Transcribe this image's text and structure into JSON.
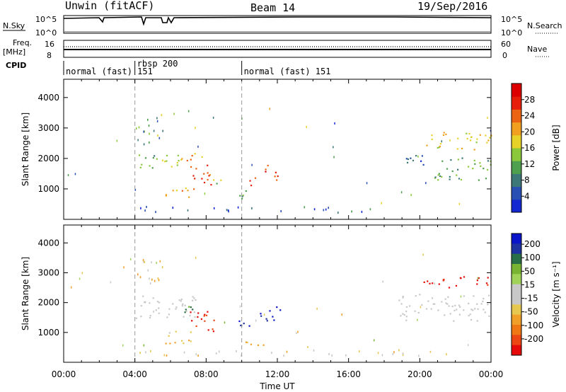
{
  "header": {
    "station": "Unwin (fitACF)",
    "beam": "Beam 14",
    "date": "19/Sep/2016"
  },
  "top_panels": {
    "nsky_label": "N.Sky",
    "nsky_ticks": [
      "10^5",
      "10^0"
    ],
    "nsearch_label": "N.Search",
    "nsearch_ticks": [
      "10^5",
      "10^0"
    ],
    "freq_label": "Freq.",
    "freq_unit": "[MHz]",
    "freq_ticks": [
      "16",
      "8"
    ],
    "nave_label": "Nave",
    "nave_ticks": [
      "60",
      "0"
    ],
    "cpid_label": "CPID"
  },
  "cpid_segments": [
    {
      "label": "normal (fast) 151",
      "start_h": 0
    },
    {
      "label": "rbsp 200",
      "start_h": 4
    },
    {
      "label": "normal (fast) 151",
      "start_h": 10
    }
  ],
  "colors": {
    "power": [
      "#1428d2",
      "#2850b4",
      "#3c7878",
      "#4ea04e",
      "#8cc83c",
      "#e6d228",
      "#f0a01e",
      "#eb6414",
      "#e61e0a",
      "#dc0000"
    ],
    "velocity": [
      "#0a14c8",
      "#1e32a0",
      "#286e46",
      "#78b432",
      "#a0d25a",
      "#c8c8c8",
      "#c8c8c8",
      "#e6c850",
      "#f0a028",
      "#f07814",
      "#eb4614",
      "#e60a0a"
    ]
  },
  "chart_data": [
    {
      "type": "heatmap",
      "name": "power",
      "xlabel": "Time UT",
      "ylabel": "Slant Range [km]",
      "xlim": [
        0,
        24
      ],
      "ylim": [
        0,
        4600
      ],
      "yticks": [
        1000,
        2000,
        3000,
        4000
      ],
      "xticks": [
        "00:00",
        "04:00",
        "08:00",
        "12:00",
        "16:00",
        "20:00",
        "00:00"
      ],
      "colorbar": {
        "label": "Power [dB]",
        "ticks": [
          4,
          8,
          12,
          16,
          20,
          24,
          28
        ],
        "range": [
          0,
          32
        ]
      },
      "regions": [
        {
          "t0": 4.0,
          "t1": 5.2,
          "r0": 1600,
          "r1": 2200,
          "value": 12
        },
        {
          "t0": 5.2,
          "t1": 6.6,
          "r0": 1700,
          "r1": 2300,
          "value": 16
        },
        {
          "t0": 6.6,
          "t1": 7.8,
          "r0": 1900,
          "r1": 2300,
          "value": 22
        },
        {
          "t0": 7.0,
          "t1": 8.3,
          "r0": 1000,
          "r1": 1800,
          "value": 26
        },
        {
          "t0": 5.7,
          "t1": 7.6,
          "r0": 700,
          "r1": 1100,
          "value": 20
        },
        {
          "t0": 8.3,
          "t1": 9.0,
          "r0": 1100,
          "r1": 1500,
          "value": 14
        },
        {
          "t0": 9.8,
          "t1": 10.3,
          "r0": 700,
          "r1": 1500,
          "value": 10
        },
        {
          "t0": 10.3,
          "t1": 10.9,
          "r0": 1100,
          "r1": 1500,
          "value": 24
        },
        {
          "t0": 11.0,
          "t1": 12.2,
          "r0": 1300,
          "r1": 1800,
          "value": 26
        },
        {
          "t0": 18.7,
          "t1": 20.2,
          "r0": 1800,
          "r1": 2300,
          "value": 6
        },
        {
          "t0": 20.2,
          "t1": 24.0,
          "r0": 2300,
          "r1": 2900,
          "value": 18
        },
        {
          "t0": 20.8,
          "t1": 24.0,
          "r0": 1300,
          "r1": 2100,
          "value": 12
        }
      ],
      "scatter": [
        {
          "t0": 4.0,
          "t1": 5.6,
          "r0": 2400,
          "r1": 3500,
          "value": 10
        },
        {
          "t0": 4.2,
          "t1": 17.5,
          "r0": 250,
          "r1": 450,
          "value": 6
        }
      ]
    },
    {
      "type": "heatmap",
      "name": "velocity",
      "xlabel": "Time UT",
      "ylabel": "Slant Range [km]",
      "xlim": [
        0,
        24
      ],
      "ylim": [
        0,
        4600
      ],
      "yticks": [
        1000,
        2000,
        3000,
        4000
      ],
      "xticks": [
        "00:00",
        "04:00",
        "08:00",
        "12:00",
        "16:00",
        "20:00",
        "00:00"
      ],
      "colorbar": {
        "label": "Velocity [m s^-1]",
        "ticks": [
          200,
          100,
          50,
          15,
          -15,
          -50,
          -100,
          -200
        ],
        "range": [
          -250,
          250
        ]
      },
      "regions": [
        {
          "t0": 4.0,
          "t1": 7.6,
          "r0": 1500,
          "r1": 2300,
          "value": 0
        },
        {
          "t0": 6.6,
          "t1": 7.6,
          "r0": 1600,
          "r1": 2000,
          "value": 150
        },
        {
          "t0": 7.0,
          "t1": 8.5,
          "r0": 1000,
          "r1": 1800,
          "value": -200
        },
        {
          "t0": 5.7,
          "t1": 7.6,
          "r0": 650,
          "r1": 1100,
          "value": -60
        },
        {
          "t0": 9.8,
          "t1": 10.5,
          "r0": 1000,
          "r1": 1600,
          "value": 200
        },
        {
          "t0": 9.9,
          "t1": 11.4,
          "r0": 550,
          "r1": 800,
          "value": -100
        },
        {
          "t0": 11.0,
          "t1": 12.2,
          "r0": 1300,
          "r1": 1900,
          "value": 220
        },
        {
          "t0": 18.6,
          "t1": 24.0,
          "r0": 1400,
          "r1": 2300,
          "value": 0
        },
        {
          "t0": 20.2,
          "t1": 24.0,
          "r0": 2500,
          "r1": 2900,
          "value": -230
        }
      ],
      "scatter": [
        {
          "t0": 4.0,
          "t1": 5.6,
          "r0": 2400,
          "r1": 3500,
          "value": -60
        },
        {
          "t0": 4.2,
          "t1": 22.0,
          "r0": 250,
          "r1": 450,
          "value": -40
        }
      ]
    }
  ]
}
